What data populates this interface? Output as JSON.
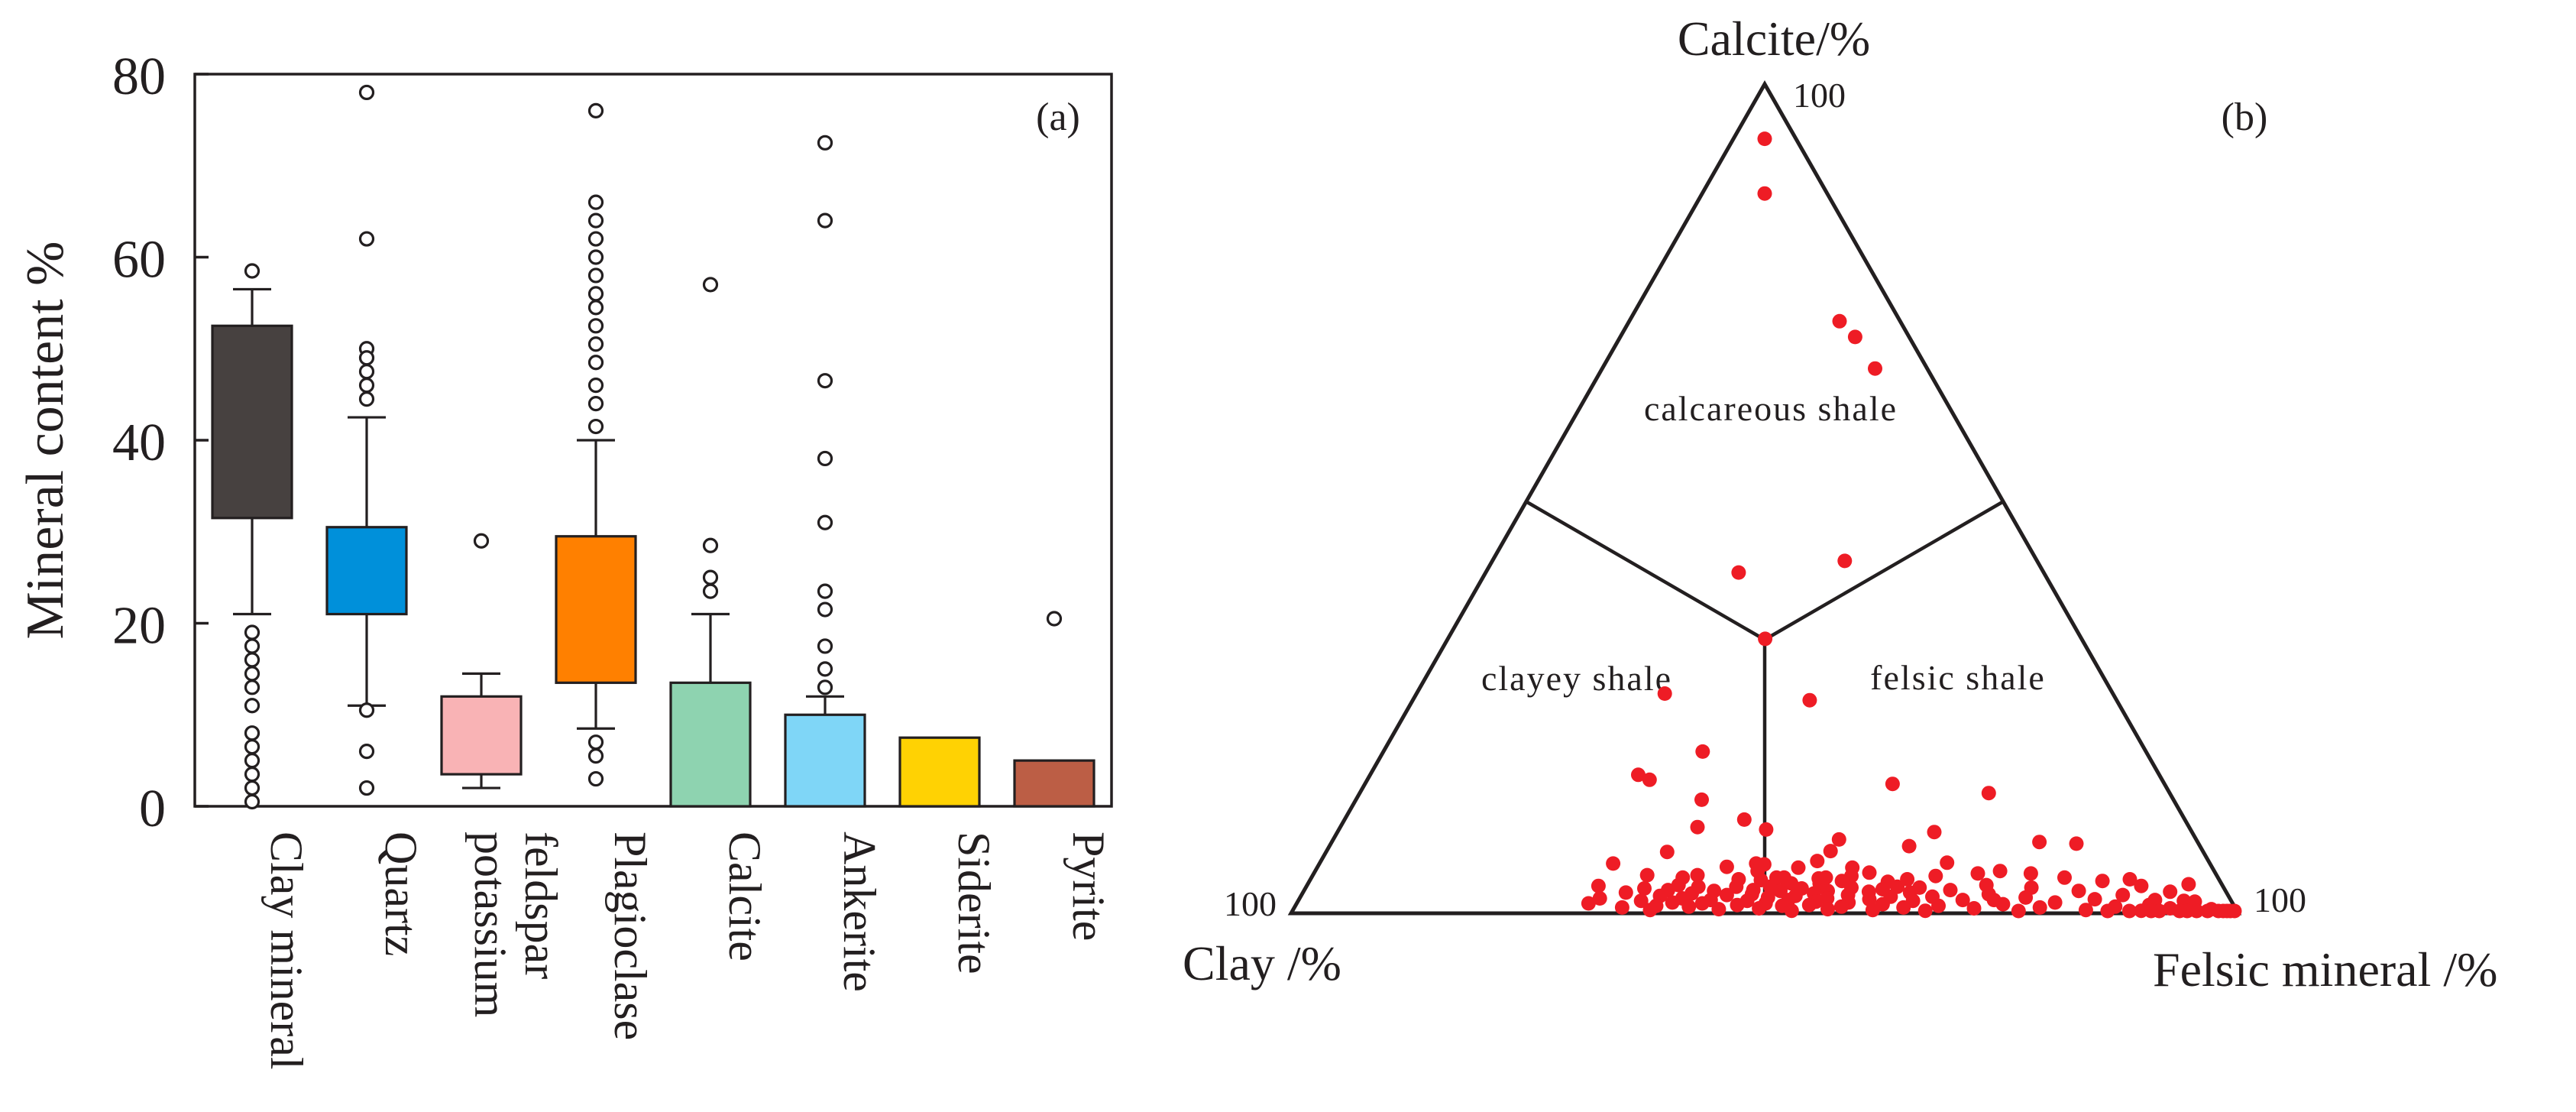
{
  "chart_data": [
    {
      "type": "box",
      "panel_label": "(a)",
      "ylabel": "Mineral content %",
      "ylim": [
        0,
        80
      ],
      "yticks": [
        "0",
        "20",
        "40",
        "60",
        "80"
      ],
      "categories": [
        "Clay mineral",
        "Quartz",
        "potassium feldspar",
        "Plagioclase",
        "Calcite",
        "Ankerite",
        "Siderite",
        "Pyrite"
      ],
      "category_lines": [
        [
          "Clay mineral"
        ],
        [
          "Quartz"
        ],
        [
          "potassium",
          "feldspar"
        ],
        [
          "Plagioclase"
        ],
        [
          "Calcite"
        ],
        [
          "Ankerite"
        ],
        [
          "Siderite"
        ],
        [
          "Pyrite"
        ]
      ],
      "colors": [
        "#474140",
        "#0090da",
        "#f9b3b5",
        "#ff8000",
        "#8ed3b0",
        "#7fd6f7",
        "#ffd203",
        "#bc5e45"
      ],
      "boxes": [
        {
          "q1": 31.5,
          "q3": 52.5,
          "low": 21,
          "high": 56.5,
          "outliers": [
            58.5,
            19,
            17.5,
            16,
            14.5,
            13,
            11,
            8,
            6.5,
            5,
            3.5,
            2,
            0.5
          ]
        },
        {
          "q1": 21,
          "q3": 30.5,
          "low": 11,
          "high": 42.5,
          "outliers": [
            78,
            62,
            50,
            49,
            47.5,
            46,
            44.5,
            10.5,
            6,
            2
          ]
        },
        {
          "q1": 3.5,
          "q3": 12,
          "low": 2,
          "high": 14.5,
          "outliers": [
            29
          ]
        },
        {
          "q1": 13.5,
          "q3": 29.5,
          "low": 8.5,
          "high": 40,
          "outliers": [
            76,
            66,
            64,
            62,
            60,
            58,
            56,
            54.5,
            52.5,
            50.5,
            48.5,
            46,
            44,
            41.5,
            7,
            5.5,
            3
          ]
        },
        {
          "q1": 0,
          "q3": 13.5,
          "low": 0,
          "high": 21,
          "outliers": [
            57,
            28.5,
            25,
            23.5
          ]
        },
        {
          "q1": 0,
          "q3": 10,
          "low": 0,
          "high": 12,
          "outliers": [
            72.5,
            64,
            46.5,
            38,
            31,
            23.5,
            21.5,
            17.5,
            15,
            13
          ]
        },
        {
          "q1": 0,
          "q3": 7.5,
          "low": 0,
          "high": 7.5,
          "outliers": []
        },
        {
          "q1": 0,
          "q3": 5,
          "low": 0,
          "high": 5,
          "outliers": [
            20.5
          ]
        }
      ]
    },
    {
      "type": "ternary",
      "panel_label": "(b)",
      "apex_labels": {
        "top": "Calcite/%",
        "left": "Clay /%",
        "right": "Felsic mineral /%"
      },
      "corner_values": {
        "top": "100",
        "left": "100",
        "right": "100"
      },
      "fields": [
        "calcareous shale",
        "clayey shale",
        "felsic shale"
      ],
      "point_color": "#ee1c25",
      "point_order": "[calcite, clay, felsic] in percent",
      "points": [
        [
          93.4,
          3.3,
          3.3
        ],
        [
          86.8,
          6.6,
          6.6
        ],
        [
          71.4,
          6.4,
          22.2
        ],
        [
          69.5,
          5.7,
          24.8
        ],
        [
          65.7,
          5.5,
          28.8
        ],
        [
          42.5,
          20.3,
          37.2
        ],
        [
          41.1,
          32.2,
          26.7
        ],
        [
          33.1,
          33.4,
          33.5
        ],
        [
          26.5,
          47.3,
          26.2
        ],
        [
          25.7,
          32.4,
          41.9
        ],
        [
          19.5,
          46.8,
          33.7
        ],
        [
          15.6,
          28.7,
          55.7
        ],
        [
          14.5,
          19.1,
          66.4
        ],
        [
          5.9,
          47.1,
          47.0
        ],
        [
          5.5,
          38.0,
          56.5
        ],
        [
          5.1,
          22.6,
          72.3
        ],
        [
          3.6,
          42.4,
          54.0
        ],
        [
          3.2,
          34.4,
          62.4
        ],
        [
          1.6,
          25.0,
          73.4
        ],
        [
          1.5,
          5.0,
          93.5
        ],
        [
          1.6,
          8.0,
          90.4
        ],
        [
          3.5,
          3.5,
          93.0
        ],
        [
          16.7,
          55.0,
          28.3
        ],
        [
          16.1,
          54.1,
          29.8
        ],
        [
          13.7,
          49.8,
          36.5
        ],
        [
          11.3,
          46.5,
          42.2
        ],
        [
          10.4,
          51.9,
          37.7
        ],
        [
          10.1,
          44.8,
          45.1
        ],
        [
          9.8,
          27.2,
          63.0
        ],
        [
          8.9,
          37.7,
          53.4
        ],
        [
          8.6,
          16.7,
          74.7
        ],
        [
          8.4,
          12.9,
          78.7
        ],
        [
          8.1,
          30.7,
          61.2
        ],
        [
          7.5,
          39.3,
          53.2
        ],
        [
          7.4,
          56.6,
          36.0
        ],
        [
          6.3,
          41.3,
          52.4
        ],
        [
          6.1,
          27.7,
          66.2
        ],
        [
          6.0,
          47.9,
          46.1
        ],
        [
          6.0,
          63.0,
          31.0
        ],
        [
          5.6,
          51.2,
          43.2
        ],
        [
          5.5,
          43.7,
          50.8
        ],
        [
          5.1,
          48.2,
          46.7
        ],
        [
          4.9,
          36.5,
          58.6
        ],
        [
          4.8,
          19.5,
          75.7
        ],
        [
          4.8,
          25.1,
          70.1
        ],
        [
          4.6,
          54.8,
          40.6
        ],
        [
          4.6,
          60.1,
          35.3
        ],
        [
          4.5,
          38.6,
          56.9
        ],
        [
          4.5,
          29.7,
          65.8
        ],
        [
          4.3,
          16.2,
          79.5
        ],
        [
          4.3,
          41.4,
          54.3
        ],
        [
          4.3,
          46.6,
          49.1
        ],
        [
          4.3,
          45.8,
          49.9
        ],
        [
          4.3,
          56.5,
          39.2
        ],
        [
          4.2,
          42.2,
          53.6
        ],
        [
          4.1,
          9.4,
          86.5
        ],
        [
          4.1,
          32.9,
          63.0
        ],
        [
          4.1,
          50.7,
          45.2
        ],
        [
          4.0,
          48.4,
          47.6
        ],
        [
          3.9,
          12.4,
          83.7
        ],
        [
          3.9,
          39.9,
          56.2
        ],
        [
          3.8,
          35.1,
          61.1
        ],
        [
          3.6,
          45.4,
          51.0
        ],
        [
          3.4,
          57.4,
          39.2
        ],
        [
          3.4,
          24.9,
          71.7
        ],
        [
          3.3,
          8.6,
          88.1
        ],
        [
          3.3,
          65.9,
          30.8
        ],
        [
          3.2,
          51.4,
          45.4
        ],
        [
          3.2,
          47.8,
          49.0
        ],
        [
          3.2,
          42.3,
          54.5
        ],
        [
          3.2,
          55.4,
          41.4
        ],
        [
          3.1,
          32.1,
          64.8
        ],
        [
          3.1,
          20.3,
          76.6
        ],
        [
          3.1,
          39.3,
          57.6
        ],
        [
          3.0,
          61.2,
          35.8
        ],
        [
          3.0,
          44.6,
          52.4
        ],
        [
          2.9,
          36.1,
          61.0
        ],
        [
          2.8,
          49.8,
          47.4
        ],
        [
          2.8,
          58.8,
          38.4
        ],
        [
          2.8,
          29.0,
          68.2
        ],
        [
          2.7,
          15.5,
          81.8
        ],
        [
          2.7,
          42.0,
          55.3
        ],
        [
          2.7,
          54.0,
          43.3
        ],
        [
          2.7,
          47.0,
          50.3
        ],
        [
          2.6,
          5.9,
          91.5
        ],
        [
          2.6,
          37.7,
          59.7
        ],
        [
          2.5,
          63.4,
          34.1
        ],
        [
          2.5,
          33.4,
          64.1
        ],
        [
          2.4,
          43.6,
          54.0
        ],
        [
          2.4,
          56.5,
          41.1
        ],
        [
          2.3,
          25.2,
          72.5
        ],
        [
          2.3,
          50.2,
          47.5
        ],
        [
          2.2,
          40.1,
          57.7
        ],
        [
          2.2,
          11.1,
          86.7
        ],
        [
          2.2,
          52.9,
          44.9
        ],
        [
          2.1,
          45.7,
          52.2
        ],
        [
          2.1,
          60.0,
          37.9
        ],
        [
          2.0,
          31.3,
          66.7
        ],
        [
          2.0,
          35.7,
          62.3
        ],
        [
          1.9,
          21.5,
          76.6
        ],
        [
          1.9,
          48.7,
          49.4
        ],
        [
          1.8,
          42.5,
          55.7
        ],
        [
          1.8,
          57.8,
          40.4
        ],
        [
          1.8,
          66.5,
          31.7
        ],
        [
          1.7,
          38.1,
          60.2
        ],
        [
          1.7,
          14.3,
          84.0
        ],
        [
          1.6,
          54.9,
          43.5
        ],
        [
          1.6,
          46.7,
          51.7
        ],
        [
          1.6,
          28.3,
          70.1
        ],
        [
          1.5,
          51.1,
          47.4
        ],
        [
          1.5,
          62.3,
          36.2
        ],
        [
          1.5,
          33.6,
          64.9
        ],
        [
          1.4,
          43.9,
          54.7
        ],
        [
          1.4,
          3.9,
          94.7
        ],
        [
          1.3,
          59.1,
          39.6
        ],
        [
          1.3,
          40.5,
          58.2
        ],
        [
          1.3,
          18.7,
          80.0
        ],
        [
          1.2,
          56.0,
          42.8
        ],
        [
          1.2,
          49.3,
          49.5
        ],
        [
          1.2,
          68.0,
          30.8
        ],
        [
          1.1,
          37.0,
          61.9
        ],
        [
          1.1,
          24.3,
          74.6
        ],
        [
          1.0,
          44.8,
          54.2
        ],
        [
          1.0,
          52.4,
          46.6
        ],
        [
          1.0,
          8.9,
          90.1
        ],
        [
          0.9,
          61.0,
          38.1
        ],
        [
          0.9,
          31.2,
          67.9
        ],
        [
          0.9,
          47.7,
          51.4
        ],
        [
          0.8,
          12.6,
          86.6
        ],
        [
          0.8,
          41.5,
          57.7
        ],
        [
          0.8,
          57.6,
          41.6
        ],
        [
          0.7,
          35.0,
          64.3
        ],
        [
          0.7,
          20.6,
          78.7
        ],
        [
          0.7,
          64.7,
          34.6
        ],
        [
          0.6,
          50.3,
          49.1
        ],
        [
          0.6,
          6.9,
          92.5
        ],
        [
          0.6,
          27.6,
          71.8
        ],
        [
          0.5,
          43.1,
          56.4
        ],
        [
          0.5,
          54.6,
          44.9
        ],
        [
          0.5,
          2.6,
          96.9
        ],
        [
          0.4,
          38.4,
          61.2
        ],
        [
          0.4,
          15.9,
          83.7
        ],
        [
          0.4,
          61.9,
          37.7
        ],
        [
          0.3,
          47.0,
          52.7
        ],
        [
          0.3,
          10.1,
          89.6
        ],
        [
          0.3,
          32.9,
          66.8
        ],
        [
          0.2,
          1.5,
          98.3
        ],
        [
          0.2,
          23.1,
          76.7
        ],
        [
          0.2,
          5.3,
          94.5
        ],
        [
          0.1,
          3.2,
          96.7
        ],
        [
          0.1,
          8.3,
          91.6
        ],
        [
          0.1,
          0.8,
          99.1
        ],
        [
          0.0,
          13.8,
          86.2
        ],
        [
          0.0,
          2.1,
          97.9
        ],
        [
          0.0,
          11.5,
          88.5
        ],
        [
          0.0,
          6.2,
          93.8
        ],
        [
          0.0,
          4.4,
          95.6
        ],
        [
          0.0,
          1.2,
          98.8
        ],
        [
          0.0,
          9.2,
          90.8
        ],
        [
          0.0,
          0.4,
          99.6
        ]
      ]
    }
  ]
}
